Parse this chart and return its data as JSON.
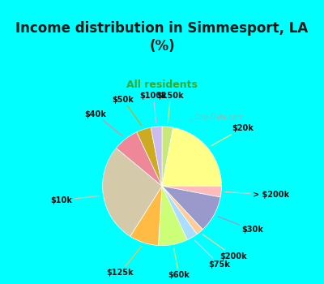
{
  "title": "Income distribution in Simmesport, LA\n(%)",
  "subtitle": "All residents",
  "background_cyan": "#00ffff",
  "background_chart": "#d4efe4",
  "watermark": "ⓘ City-Data.com",
  "slices": [
    {
      "label": "$150k",
      "value": 3.0,
      "color": "#c8e87a"
    },
    {
      "label": "$20k",
      "value": 22.0,
      "color": "#ffff88"
    },
    {
      "label": "> $200k",
      "value": 3.0,
      "color": "#ffbbbb"
    },
    {
      "label": "$30k",
      "value": 10.0,
      "color": "#9999cc"
    },
    {
      "label": "$200k",
      "value": 2.0,
      "color": "#ffcc99"
    },
    {
      "label": "$75k",
      "value": 3.0,
      "color": "#aaddff"
    },
    {
      "label": "$60k",
      "value": 8.0,
      "color": "#ccff77"
    },
    {
      "label": "$125k",
      "value": 8.0,
      "color": "#ffbb44"
    },
    {
      "label": "$10k",
      "value": 27.0,
      "color": "#d4c9a8"
    },
    {
      "label": "$40k",
      "value": 7.0,
      "color": "#ee8899"
    },
    {
      "label": "$50k",
      "value": 4.0,
      "color": "#ccaa22"
    },
    {
      "label": "$100k",
      "value": 3.0,
      "color": "#ccbbee"
    }
  ],
  "label_fontsize": 7.0,
  "label_color": "#111111",
  "title_fontsize": 12,
  "subtitle_fontsize": 9
}
